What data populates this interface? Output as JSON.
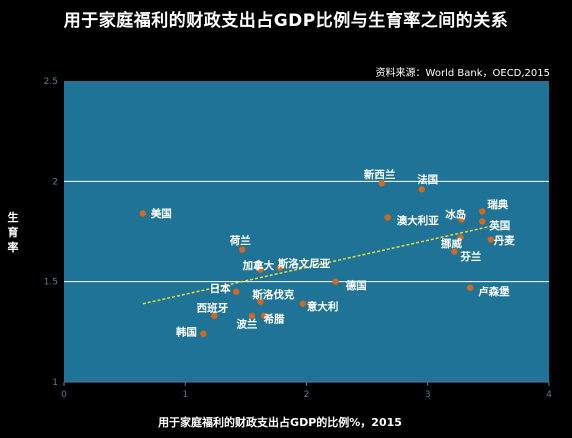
{
  "chart_data": {
    "type": "scatter",
    "title": "用于家庭福利的财政支出占GDP比例与生育率之间的关系",
    "source": "资料来源：World Bank，OECD,2015",
    "xlabel": "用于家庭福利的财政支出占GDP的比例%，2015",
    "ylabel": "生育率",
    "xlim": [
      0,
      4
    ],
    "ylim": [
      1,
      2.5
    ],
    "x_ticks": [
      "0",
      "1",
      "2",
      "3",
      "4"
    ],
    "y_ticks": [
      "1",
      "1.5",
      "2",
      "2.5"
    ],
    "grid": "horizontal",
    "colors": {
      "plot_background": "#1e7396",
      "point": "#d2691e",
      "trend": "#e6dc3c",
      "grid": "#ffffff",
      "axis_text": "#4f7f96"
    },
    "points": [
      {
        "label": "美国",
        "x": 0.65,
        "y": 1.84
      },
      {
        "label": "新西兰",
        "x": 2.62,
        "y": 1.99
      },
      {
        "label": "法国",
        "x": 2.95,
        "y": 1.96
      },
      {
        "label": "澳大利亚",
        "x": 2.67,
        "y": 1.82
      },
      {
        "label": "冰岛",
        "x": 3.28,
        "y": 1.81
      },
      {
        "label": "瑞典",
        "x": 3.45,
        "y": 1.85
      },
      {
        "label": "英国",
        "x": 3.45,
        "y": 1.8
      },
      {
        "label": "挪威",
        "x": 3.27,
        "y": 1.72
      },
      {
        "label": "丹麦",
        "x": 3.52,
        "y": 1.71
      },
      {
        "label": "芬兰",
        "x": 3.22,
        "y": 1.65
      },
      {
        "label": "荷兰",
        "x": 1.47,
        "y": 1.66
      },
      {
        "label": "加拿大",
        "x": 1.62,
        "y": 1.56
      },
      {
        "label": "斯洛文尼亚",
        "x": 1.78,
        "y": 1.57
      },
      {
        "label": "德国",
        "x": 2.24,
        "y": 1.5
      },
      {
        "label": "日本",
        "x": 1.42,
        "y": 1.45
      },
      {
        "label": "卢森堡",
        "x": 3.35,
        "y": 1.47
      },
      {
        "label": "斯洛伐克",
        "x": 1.62,
        "y": 1.4
      },
      {
        "label": "意大利",
        "x": 1.97,
        "y": 1.39
      },
      {
        "label": "西班牙",
        "x": 1.24,
        "y": 1.33
      },
      {
        "label": "波兰",
        "x": 1.55,
        "y": 1.33
      },
      {
        "label": "希腊",
        "x": 1.65,
        "y": 1.33
      },
      {
        "label": "韩国",
        "x": 1.15,
        "y": 1.24
      }
    ],
    "trend_line": {
      "x": [
        0.65,
        3.55
      ],
      "y": [
        1.39,
        1.78
      ]
    }
  }
}
